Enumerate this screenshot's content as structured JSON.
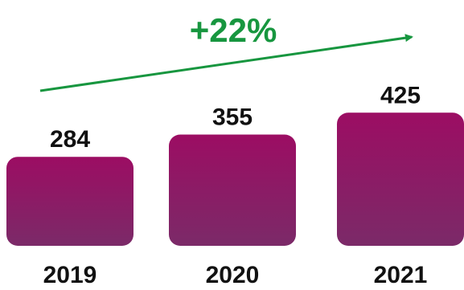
{
  "chart_data": {
    "type": "bar",
    "categories": [
      "2019",
      "2020",
      "2021"
    ],
    "values": [
      284,
      355,
      425
    ],
    "data_labels": [
      "284",
      "355",
      "425"
    ],
    "title": "",
    "xlabel": "",
    "ylabel": "",
    "grid": false,
    "legend": "none",
    "annotation": {
      "text": "+22%",
      "type": "trend-arrow"
    }
  },
  "colors": {
    "bar_top": "#9c0d63",
    "bar_bottom": "#7b2a68",
    "arrow": "#17963f",
    "text": "#111111"
  }
}
